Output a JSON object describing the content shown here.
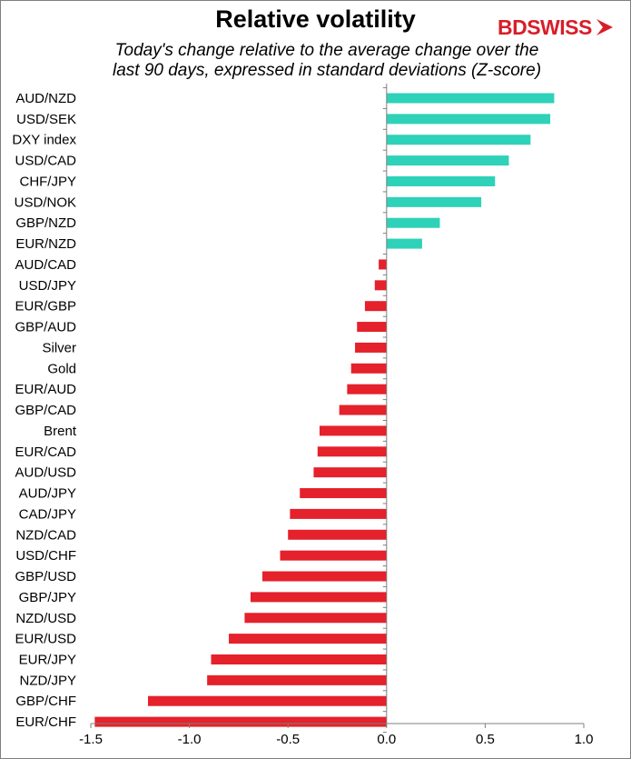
{
  "title": "Relative volatility",
  "subtitle_line1": "Today's change relative to the average change over the",
  "subtitle_line2": "last 90 days, expressed in standard deviations (Z-score)",
  "brand": {
    "text": "BDSWISS",
    "color": "#d81e2a",
    "icon": "arrow-chevron-icon"
  },
  "colors": {
    "positive": "#2ed2b8",
    "negative": "#e5212b",
    "axis": "#7f7f7f"
  },
  "chart_data": {
    "type": "bar",
    "orientation": "horizontal",
    "categories": [
      "AUD/NZD",
      "USD/SEK",
      "DXY index",
      "USD/CAD",
      "CHF/JPY",
      "USD/NOK",
      "GBP/NZD",
      "EUR/NZD",
      "AUD/CAD",
      "USD/JPY",
      "EUR/GBP",
      "GBP/AUD",
      "Silver",
      "Gold",
      "EUR/AUD",
      "GBP/CAD",
      "Brent",
      "EUR/CAD",
      "AUD/USD",
      "AUD/JPY",
      "CAD/JPY",
      "NZD/CAD",
      "USD/CHF",
      "GBP/USD",
      "GBP/JPY",
      "NZD/USD",
      "EUR/USD",
      "EUR/JPY",
      "NZD/JPY",
      "GBP/CHF",
      "EUR/CHF"
    ],
    "values": [
      0.85,
      0.83,
      0.73,
      0.62,
      0.55,
      0.48,
      0.27,
      0.18,
      -0.04,
      -0.06,
      -0.11,
      -0.15,
      -0.16,
      -0.18,
      -0.2,
      -0.24,
      -0.34,
      -0.35,
      -0.37,
      -0.44,
      -0.49,
      -0.5,
      -0.54,
      -0.63,
      -0.69,
      -0.72,
      -0.8,
      -0.89,
      -0.91,
      -1.21,
      -1.48
    ],
    "xlim": [
      -1.5,
      1.0
    ],
    "xticks": [
      "-1.5",
      "-1.0",
      "-0.5",
      "0.0",
      "0.5",
      "1.0"
    ],
    "xtick_values": [
      -1.5,
      -1.0,
      -0.5,
      0.0,
      0.5,
      1.0
    ],
    "title": "Relative volatility",
    "xlabel": "",
    "ylabel": "",
    "grid": false
  }
}
